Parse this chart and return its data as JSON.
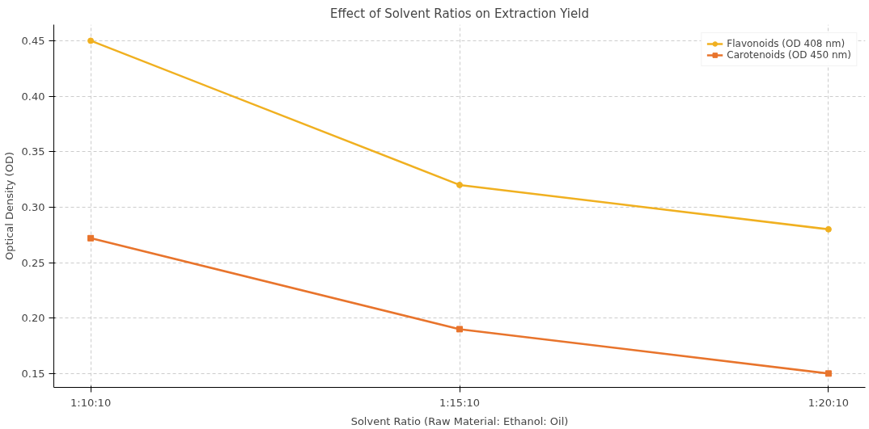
{
  "chart_data": {
    "type": "line",
    "title": "Effect of Solvent Ratios on Extraction Yield",
    "xlabel": "Solvent Ratio (Raw Material: Ethanol: Oil)",
    "ylabel": "Optical Density (OD)",
    "categories": [
      "1:10:10",
      "1:15:10",
      "1:20:10"
    ],
    "series": [
      {
        "name": "Flavonoids (OD 408 nm)",
        "color": "#f0b020",
        "marker": "circle",
        "values": [
          0.45,
          0.32,
          0.28
        ]
      },
      {
        "name": "Carotenoids (OD 450 nm)",
        "color": "#e8742c",
        "marker": "square",
        "values": [
          0.272,
          0.19,
          0.15
        ]
      }
    ],
    "ylim": [
      0.1375,
      0.4645
    ],
    "yticks": [
      0.15,
      {
        "value": 0.2,
        "label": "0.20"
      },
      0.25,
      {
        "value": 0.3,
        "label": "0.30"
      },
      0.35,
      {
        "value": 0.4,
        "label": "0.40"
      },
      0.45
    ],
    "grid": true,
    "legend": "top right",
    "line_style": "solid"
  }
}
